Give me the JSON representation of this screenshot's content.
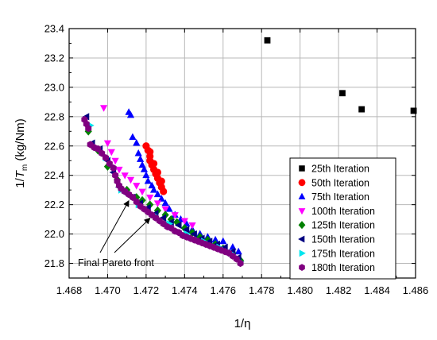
{
  "chart_data": {
    "type": "scatter",
    "xlabel": "1/η",
    "ylabel": {
      "prefix": "1/",
      "main": "T",
      "sub": "m",
      "suffix": " (kg/Nm)"
    },
    "xlim": [
      1.468,
      1.486
    ],
    "ylim": [
      21.7,
      23.4
    ],
    "xticks": [
      "1.468",
      "1.470",
      "1.472",
      "1.474",
      "1.476",
      "1.478",
      "1.480",
      "1.482",
      "1.484",
      "1.486"
    ],
    "yticks": [
      "21.8",
      "22.0",
      "22.2",
      "22.4",
      "22.6",
      "22.8",
      "23.0",
      "23.2",
      "23.4"
    ],
    "grid": true,
    "legend_position": "right",
    "annotation": "Final Pareto front",
    "series": [
      {
        "name": "25th Iteration",
        "marker": "square",
        "color": "#000000",
        "points": [
          [
            1.4783,
            23.32
          ],
          [
            1.4822,
            22.96
          ],
          [
            1.4832,
            22.85
          ],
          [
            1.4859,
            22.84
          ]
        ]
      },
      {
        "name": "50th Iteration",
        "marker": "circle",
        "color": "#ff0000",
        "points": [
          [
            1.472,
            22.6
          ],
          [
            1.4721,
            22.57
          ],
          [
            1.4722,
            22.53
          ],
          [
            1.4722,
            22.5
          ],
          [
            1.4723,
            22.47
          ],
          [
            1.4724,
            22.44
          ],
          [
            1.4725,
            22.41
          ],
          [
            1.4726,
            22.38
          ],
          [
            1.4727,
            22.35
          ],
          [
            1.4728,
            22.32
          ],
          [
            1.4729,
            22.29
          ],
          [
            1.4722,
            22.56
          ],
          [
            1.4724,
            22.48
          ],
          [
            1.4726,
            22.42
          ],
          [
            1.4728,
            22.36
          ]
        ]
      },
      {
        "name": "75th Iteration",
        "marker": "triangle-up",
        "color": "#0000ff",
        "points": [
          [
            1.4711,
            22.83
          ],
          [
            1.4712,
            22.81
          ],
          [
            1.4713,
            22.66
          ],
          [
            1.4715,
            22.62
          ],
          [
            1.4716,
            22.55
          ],
          [
            1.4717,
            22.51
          ],
          [
            1.4718,
            22.47
          ],
          [
            1.4719,
            22.44
          ],
          [
            1.472,
            22.4
          ],
          [
            1.4721,
            22.36
          ],
          [
            1.4723,
            22.33
          ],
          [
            1.4724,
            22.3
          ],
          [
            1.4726,
            22.27
          ],
          [
            1.4728,
            22.24
          ],
          [
            1.473,
            22.21
          ],
          [
            1.4732,
            22.17
          ],
          [
            1.4735,
            22.13
          ],
          [
            1.4738,
            22.1
          ],
          [
            1.4741,
            22.07
          ],
          [
            1.4744,
            22.03
          ],
          [
            1.4748,
            22.0
          ],
          [
            1.4752,
            21.98
          ],
          [
            1.4756,
            21.96
          ],
          [
            1.476,
            21.95
          ],
          [
            1.4765,
            21.91
          ],
          [
            1.4768,
            21.88
          ]
        ]
      },
      {
        "name": "100th Iteration",
        "marker": "triangle-down",
        "color": "#ff00ff",
        "points": [
          [
            1.4698,
            22.86
          ],
          [
            1.47,
            22.62
          ],
          [
            1.4702,
            22.56
          ],
          [
            1.4704,
            22.5
          ],
          [
            1.4706,
            22.44
          ],
          [
            1.4709,
            22.4
          ],
          [
            1.4712,
            22.37
          ],
          [
            1.4715,
            22.33
          ],
          [
            1.4718,
            22.29
          ],
          [
            1.4722,
            22.25
          ],
          [
            1.4726,
            22.21
          ],
          [
            1.473,
            22.17
          ],
          [
            1.4735,
            22.13
          ],
          [
            1.474,
            22.09
          ],
          [
            1.4744,
            22.06
          ]
        ]
      },
      {
        "name": "125th Iteration",
        "marker": "diamond",
        "color": "#008000",
        "points": [
          [
            1.469,
            22.7
          ],
          [
            1.4695,
            22.57
          ],
          [
            1.47,
            22.46
          ],
          [
            1.4705,
            22.37
          ],
          [
            1.471,
            22.3
          ],
          [
            1.4715,
            22.25
          ],
          [
            1.4718,
            22.23
          ],
          [
            1.4722,
            22.2
          ],
          [
            1.4726,
            22.16
          ],
          [
            1.473,
            22.13
          ],
          [
            1.4733,
            22.1
          ],
          [
            1.4736,
            22.08
          ],
          [
            1.474,
            22.04
          ],
          [
            1.4744,
            22.01
          ],
          [
            1.4748,
            21.98
          ],
          [
            1.4752,
            21.96
          ],
          [
            1.4756,
            21.93
          ],
          [
            1.476,
            21.9
          ],
          [
            1.4765,
            21.87
          ],
          [
            1.4769,
            21.82
          ]
        ]
      },
      {
        "name": "150th Iteration",
        "marker": "triangle-left",
        "color": "#000080",
        "points": [
          [
            1.4689,
            22.8
          ],
          [
            1.4692,
            22.62
          ],
          [
            1.4696,
            22.58
          ],
          [
            1.47,
            22.5
          ],
          [
            1.4703,
            22.42
          ],
          [
            1.4706,
            22.32
          ],
          [
            1.4709,
            22.28
          ],
          [
            1.4713,
            22.25
          ],
          [
            1.4717,
            22.21
          ],
          [
            1.4721,
            22.18
          ],
          [
            1.4725,
            22.14
          ],
          [
            1.4729,
            22.11
          ],
          [
            1.4733,
            22.08
          ],
          [
            1.4737,
            22.06
          ],
          [
            1.4741,
            22.03
          ],
          [
            1.4745,
            22.0
          ],
          [
            1.4749,
            21.97
          ],
          [
            1.4753,
            21.95
          ],
          [
            1.4757,
            21.93
          ],
          [
            1.4761,
            21.91
          ],
          [
            1.4765,
            21.88
          ],
          [
            1.4768,
            21.84
          ]
        ]
      },
      {
        "name": "175th Iteration",
        "marker": "triangle-right",
        "color": "#00e5ee",
        "points": [
          [
            1.4691,
            22.74
          ],
          [
            1.4699,
            22.52
          ],
          [
            1.4707,
            22.3
          ],
          [
            1.4716,
            22.2
          ],
          [
            1.4724,
            22.13
          ],
          [
            1.4732,
            22.07
          ],
          [
            1.4741,
            22.0
          ],
          [
            1.475,
            21.95
          ],
          [
            1.4758,
            21.91
          ],
          [
            1.4764,
            21.87
          ],
          [
            1.4769,
            21.81
          ]
        ]
      },
      {
        "name": "180th Iteration",
        "marker": "hexagon",
        "color": "#800080",
        "points": [
          [
            1.4688,
            22.78
          ],
          [
            1.4689,
            22.75
          ],
          [
            1.469,
            22.72
          ],
          [
            1.4691,
            22.61
          ],
          [
            1.4693,
            22.59
          ],
          [
            1.4695,
            22.58
          ],
          [
            1.4697,
            22.55
          ],
          [
            1.4699,
            22.52
          ],
          [
            1.4701,
            22.48
          ],
          [
            1.4703,
            22.45
          ],
          [
            1.4704,
            22.4
          ],
          [
            1.4705,
            22.36
          ],
          [
            1.4706,
            22.33
          ],
          [
            1.4707,
            22.31
          ],
          [
            1.4709,
            22.29
          ],
          [
            1.4711,
            22.27
          ],
          [
            1.4713,
            22.25
          ],
          [
            1.4715,
            22.22
          ],
          [
            1.4717,
            22.19
          ],
          [
            1.4719,
            22.17
          ],
          [
            1.4721,
            22.15
          ],
          [
            1.4723,
            22.13
          ],
          [
            1.4725,
            22.11
          ],
          [
            1.4727,
            22.09
          ],
          [
            1.4729,
            22.07
          ],
          [
            1.4731,
            22.05
          ],
          [
            1.4733,
            22.04
          ],
          [
            1.4735,
            22.02
          ],
          [
            1.4737,
            22.01
          ],
          [
            1.4739,
            21.99
          ],
          [
            1.4741,
            21.98
          ],
          [
            1.4743,
            21.97
          ],
          [
            1.4745,
            21.96
          ],
          [
            1.4747,
            21.95
          ],
          [
            1.4749,
            21.94
          ],
          [
            1.4751,
            21.93
          ],
          [
            1.4753,
            21.92
          ],
          [
            1.4755,
            21.91
          ],
          [
            1.4757,
            21.9
          ],
          [
            1.4759,
            21.89
          ],
          [
            1.4761,
            21.88
          ],
          [
            1.4763,
            21.87
          ],
          [
            1.4765,
            21.85
          ],
          [
            1.4767,
            21.83
          ],
          [
            1.4769,
            21.8
          ]
        ]
      }
    ]
  }
}
